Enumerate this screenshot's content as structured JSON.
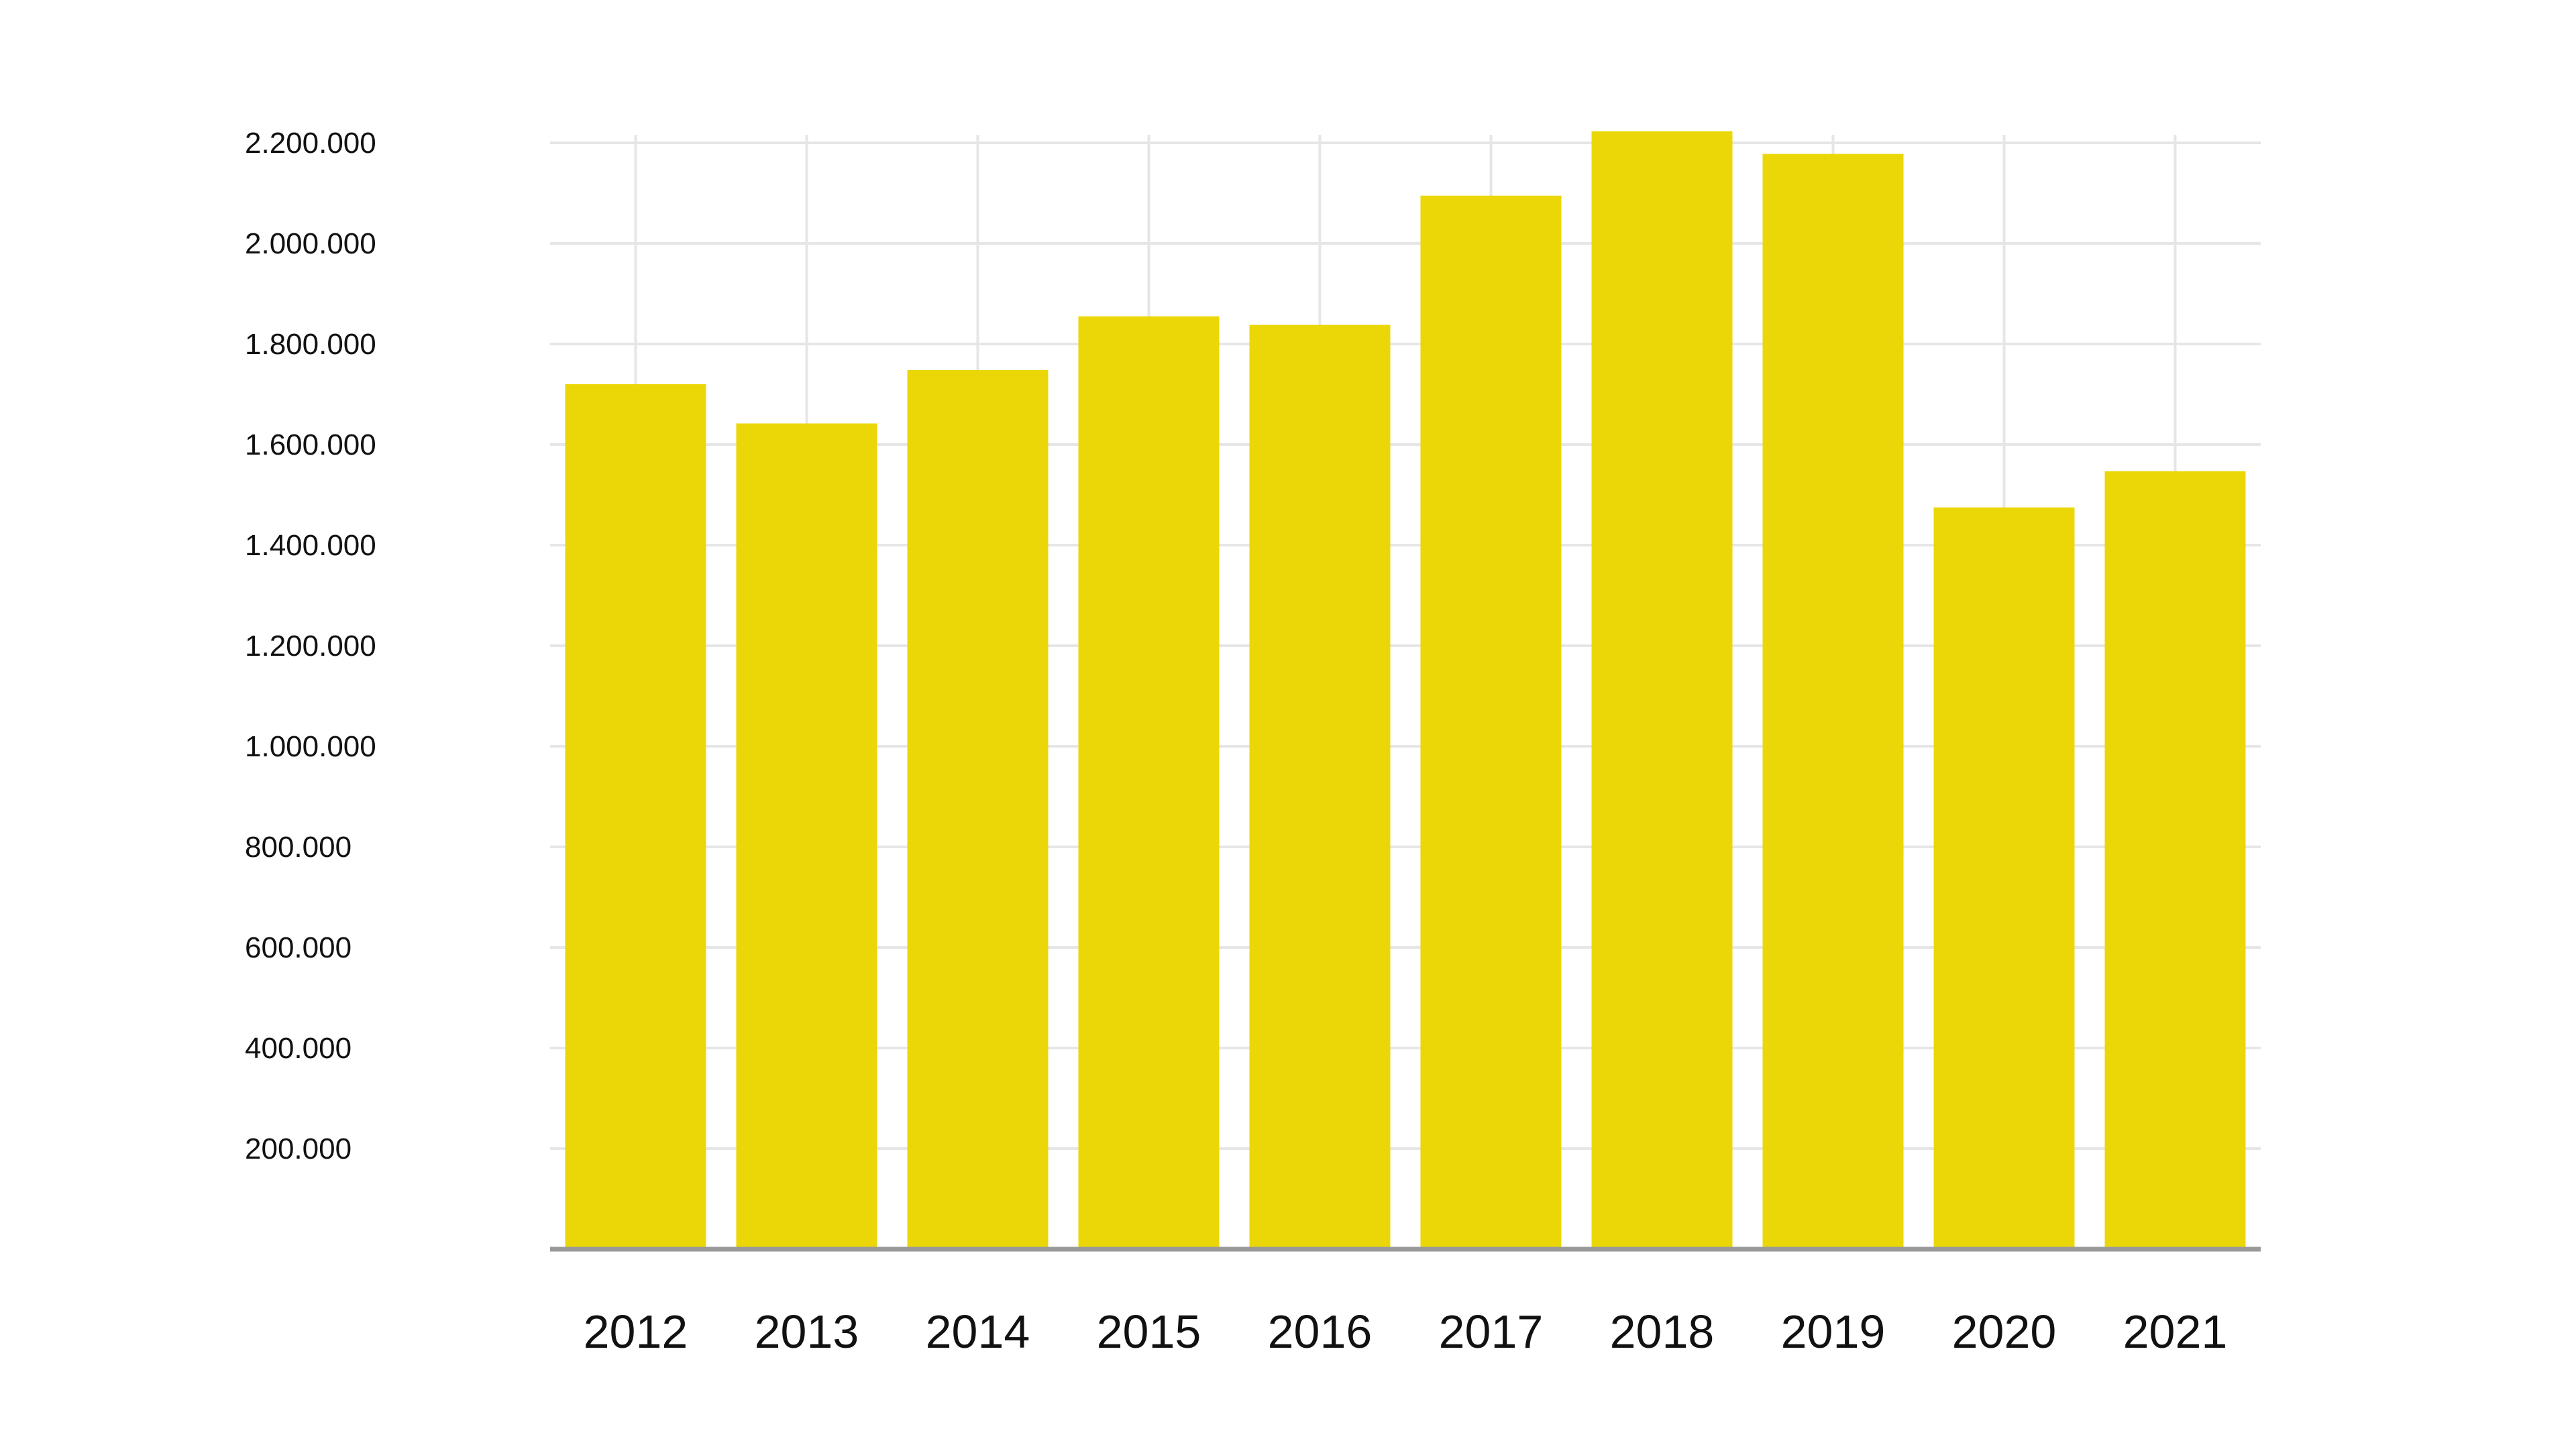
{
  "chart_data": {
    "type": "bar",
    "title": "",
    "xlabel": "",
    "ylabel": "",
    "categories": [
      "2012",
      "2013",
      "2014",
      "2015",
      "2016",
      "2017",
      "2018",
      "2019",
      "2020",
      "2021"
    ],
    "values": [
      1720000,
      1642000,
      1748000,
      1855000,
      1838000,
      2095000,
      2223000,
      2178000,
      1475000,
      1547000
    ],
    "ylim": [
      0,
      2200000
    ],
    "y_ticks": [
      200000,
      400000,
      600000,
      800000,
      1000000,
      1200000,
      1400000,
      1600000,
      1800000,
      2000000,
      2200000
    ],
    "y_tick_labels": [
      "200.000",
      "400.000",
      "600.000",
      "800.000",
      "1.000.000",
      "1.200.000",
      "1.400.000",
      "1.600.000",
      "1.800.000",
      "2.000.000",
      "2.200.000"
    ],
    "grid": true,
    "legend": "none",
    "colors": {
      "bar": "#ebd707",
      "grid": "#e6e6e6",
      "baseline": "#999999",
      "text": "#111111"
    }
  }
}
